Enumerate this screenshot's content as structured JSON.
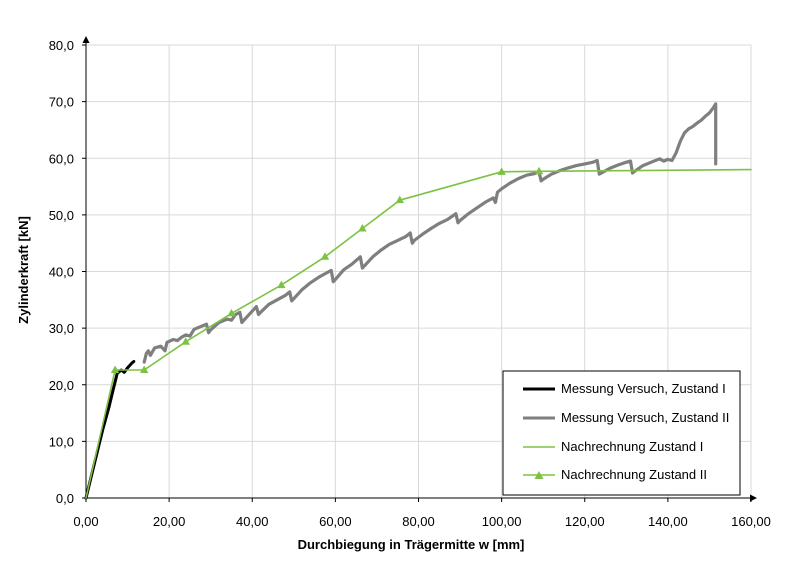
{
  "chart_data": {
    "type": "line",
    "xlabel": "Durchbiegung in Trägermitte w [mm]",
    "ylabel": "Zylinderkraft [kN]",
    "xlim": [
      0,
      160
    ],
    "ylim": [
      0,
      80
    ],
    "x_ticks": [
      0,
      20,
      40,
      60,
      80,
      100,
      120,
      140,
      160
    ],
    "y_ticks": [
      0,
      10,
      20,
      30,
      40,
      50,
      60,
      70,
      80
    ],
    "x_tick_labels": [
      "0,00",
      "20,00",
      "40,00",
      "60,00",
      "80,00",
      "100,00",
      "120,00",
      "140,00",
      "160,00"
    ],
    "y_tick_labels": [
      "0,0",
      "10,0",
      "20,0",
      "30,0",
      "40,0",
      "50,0",
      "60,0",
      "70,0",
      "80,0"
    ],
    "grid": true,
    "legend_position": "bottom-right",
    "series": [
      {
        "name": "Messung Versuch, Zustand I",
        "color": "#000000",
        "marker": "none",
        "points": [
          [
            0,
            0
          ],
          [
            2,
            6
          ],
          [
            4,
            12
          ],
          [
            5.5,
            16
          ],
          [
            6.5,
            19
          ],
          [
            7.5,
            22
          ],
          [
            8.5,
            22.6
          ],
          [
            9.2,
            22.2
          ],
          [
            10,
            23
          ],
          [
            11,
            23.8
          ],
          [
            11.5,
            24.1
          ]
        ]
      },
      {
        "name": "Messung Versuch, Zustand II",
        "color": "#7f7f7f",
        "marker": "none",
        "points": [
          [
            14,
            24
          ],
          [
            14.5,
            25.5
          ],
          [
            15,
            26
          ],
          [
            15.5,
            25.2
          ],
          [
            16.5,
            26.5
          ],
          [
            18,
            26.8
          ],
          [
            19,
            26
          ],
          [
            19.5,
            27.5
          ],
          [
            21,
            28
          ],
          [
            22,
            27.8
          ],
          [
            23,
            28.4
          ],
          [
            24,
            28.8
          ],
          [
            25,
            28.6
          ],
          [
            26,
            29.8
          ],
          [
            28,
            30.4
          ],
          [
            29,
            30.7
          ],
          [
            29.5,
            29.2
          ],
          [
            30,
            29.7
          ],
          [
            32,
            31
          ],
          [
            34,
            31.6
          ],
          [
            35,
            31.4
          ],
          [
            36,
            32.4
          ],
          [
            37,
            32.8
          ],
          [
            37.5,
            31
          ],
          [
            38,
            31.4
          ],
          [
            40,
            33
          ],
          [
            41,
            33.8
          ],
          [
            41.5,
            32.4
          ],
          [
            42,
            32.8
          ],
          [
            44,
            34.2
          ],
          [
            46,
            35
          ],
          [
            48,
            35.8
          ],
          [
            49,
            36.4
          ],
          [
            49.5,
            34.8
          ],
          [
            50,
            35.2
          ],
          [
            52,
            36.8
          ],
          [
            54,
            38
          ],
          [
            56,
            39
          ],
          [
            58,
            39.8
          ],
          [
            59,
            40.2
          ],
          [
            59.5,
            38.2
          ],
          [
            60,
            38.6
          ],
          [
            62,
            40.3
          ],
          [
            64,
            41.3
          ],
          [
            66,
            42.6
          ],
          [
            66.5,
            40.6
          ],
          [
            67,
            41
          ],
          [
            69,
            42.6
          ],
          [
            71,
            43.8
          ],
          [
            73,
            44.8
          ],
          [
            75,
            45.5
          ],
          [
            77,
            46.2
          ],
          [
            78,
            46.8
          ],
          [
            78.5,
            45
          ],
          [
            79,
            45.5
          ],
          [
            81,
            46.6
          ],
          [
            83,
            47.6
          ],
          [
            85,
            48.5
          ],
          [
            87,
            49.2
          ],
          [
            89,
            50.2
          ],
          [
            89.5,
            48.6
          ],
          [
            90,
            49
          ],
          [
            92,
            50.2
          ],
          [
            94,
            51.2
          ],
          [
            96,
            52.2
          ],
          [
            98,
            53
          ],
          [
            98.5,
            52.2
          ],
          [
            99,
            54
          ],
          [
            100,
            54.6
          ],
          [
            102,
            55.6
          ],
          [
            104,
            56.4
          ],
          [
            106,
            57
          ],
          [
            108,
            57.3
          ],
          [
            109,
            57.6
          ],
          [
            109.5,
            56
          ],
          [
            110,
            56.3
          ],
          [
            112,
            57.2
          ],
          [
            114,
            57.8
          ],
          [
            116,
            58.3
          ],
          [
            118,
            58.7
          ],
          [
            120,
            59
          ],
          [
            122,
            59.3
          ],
          [
            123,
            59.6
          ],
          [
            123.5,
            57.2
          ],
          [
            124,
            57.4
          ],
          [
            126,
            58.2
          ],
          [
            128,
            58.8
          ],
          [
            130,
            59.3
          ],
          [
            131,
            59.5
          ],
          [
            131.5,
            57.4
          ],
          [
            132,
            57.7
          ],
          [
            134,
            58.7
          ],
          [
            136,
            59.3
          ],
          [
            138,
            59.9
          ],
          [
            139,
            59.5
          ],
          [
            140,
            59.8
          ],
          [
            141,
            59.6
          ],
          [
            142,
            61
          ],
          [
            143,
            63
          ],
          [
            144,
            64.5
          ],
          [
            145,
            65.2
          ],
          [
            146,
            65.6
          ],
          [
            147,
            66.2
          ],
          [
            148,
            66.7
          ],
          [
            149,
            67.4
          ],
          [
            150,
            68
          ],
          [
            151,
            69
          ],
          [
            151.5,
            69.6
          ],
          [
            151.5,
            59
          ]
        ]
      },
      {
        "name": "Nachrechnung Zustand I",
        "color": "#7dc242",
        "marker": "none",
        "points": [
          [
            0,
            0
          ],
          [
            7,
            22.6
          ]
        ]
      },
      {
        "name": "Nachrechnung Zustand II",
        "color": "#7dc242",
        "marker": "triangle",
        "points": [
          [
            7,
            22.6
          ],
          [
            14,
            22.6
          ],
          [
            24,
            27.6
          ],
          [
            35,
            32.6
          ],
          [
            47,
            37.6
          ],
          [
            57.5,
            42.6
          ],
          [
            66.5,
            47.6
          ],
          [
            75.5,
            52.6
          ],
          [
            100,
            57.6
          ],
          [
            109,
            57.7
          ],
          [
            160,
            58
          ]
        ],
        "marker_points": [
          [
            7,
            22.6
          ],
          [
            14,
            22.6
          ],
          [
            24,
            27.6
          ],
          [
            35,
            32.6
          ],
          [
            47,
            37.6
          ],
          [
            57.5,
            42.6
          ],
          [
            66.5,
            47.6
          ],
          [
            75.5,
            52.6
          ],
          [
            100,
            57.6
          ],
          [
            109,
            57.7
          ]
        ]
      }
    ]
  }
}
